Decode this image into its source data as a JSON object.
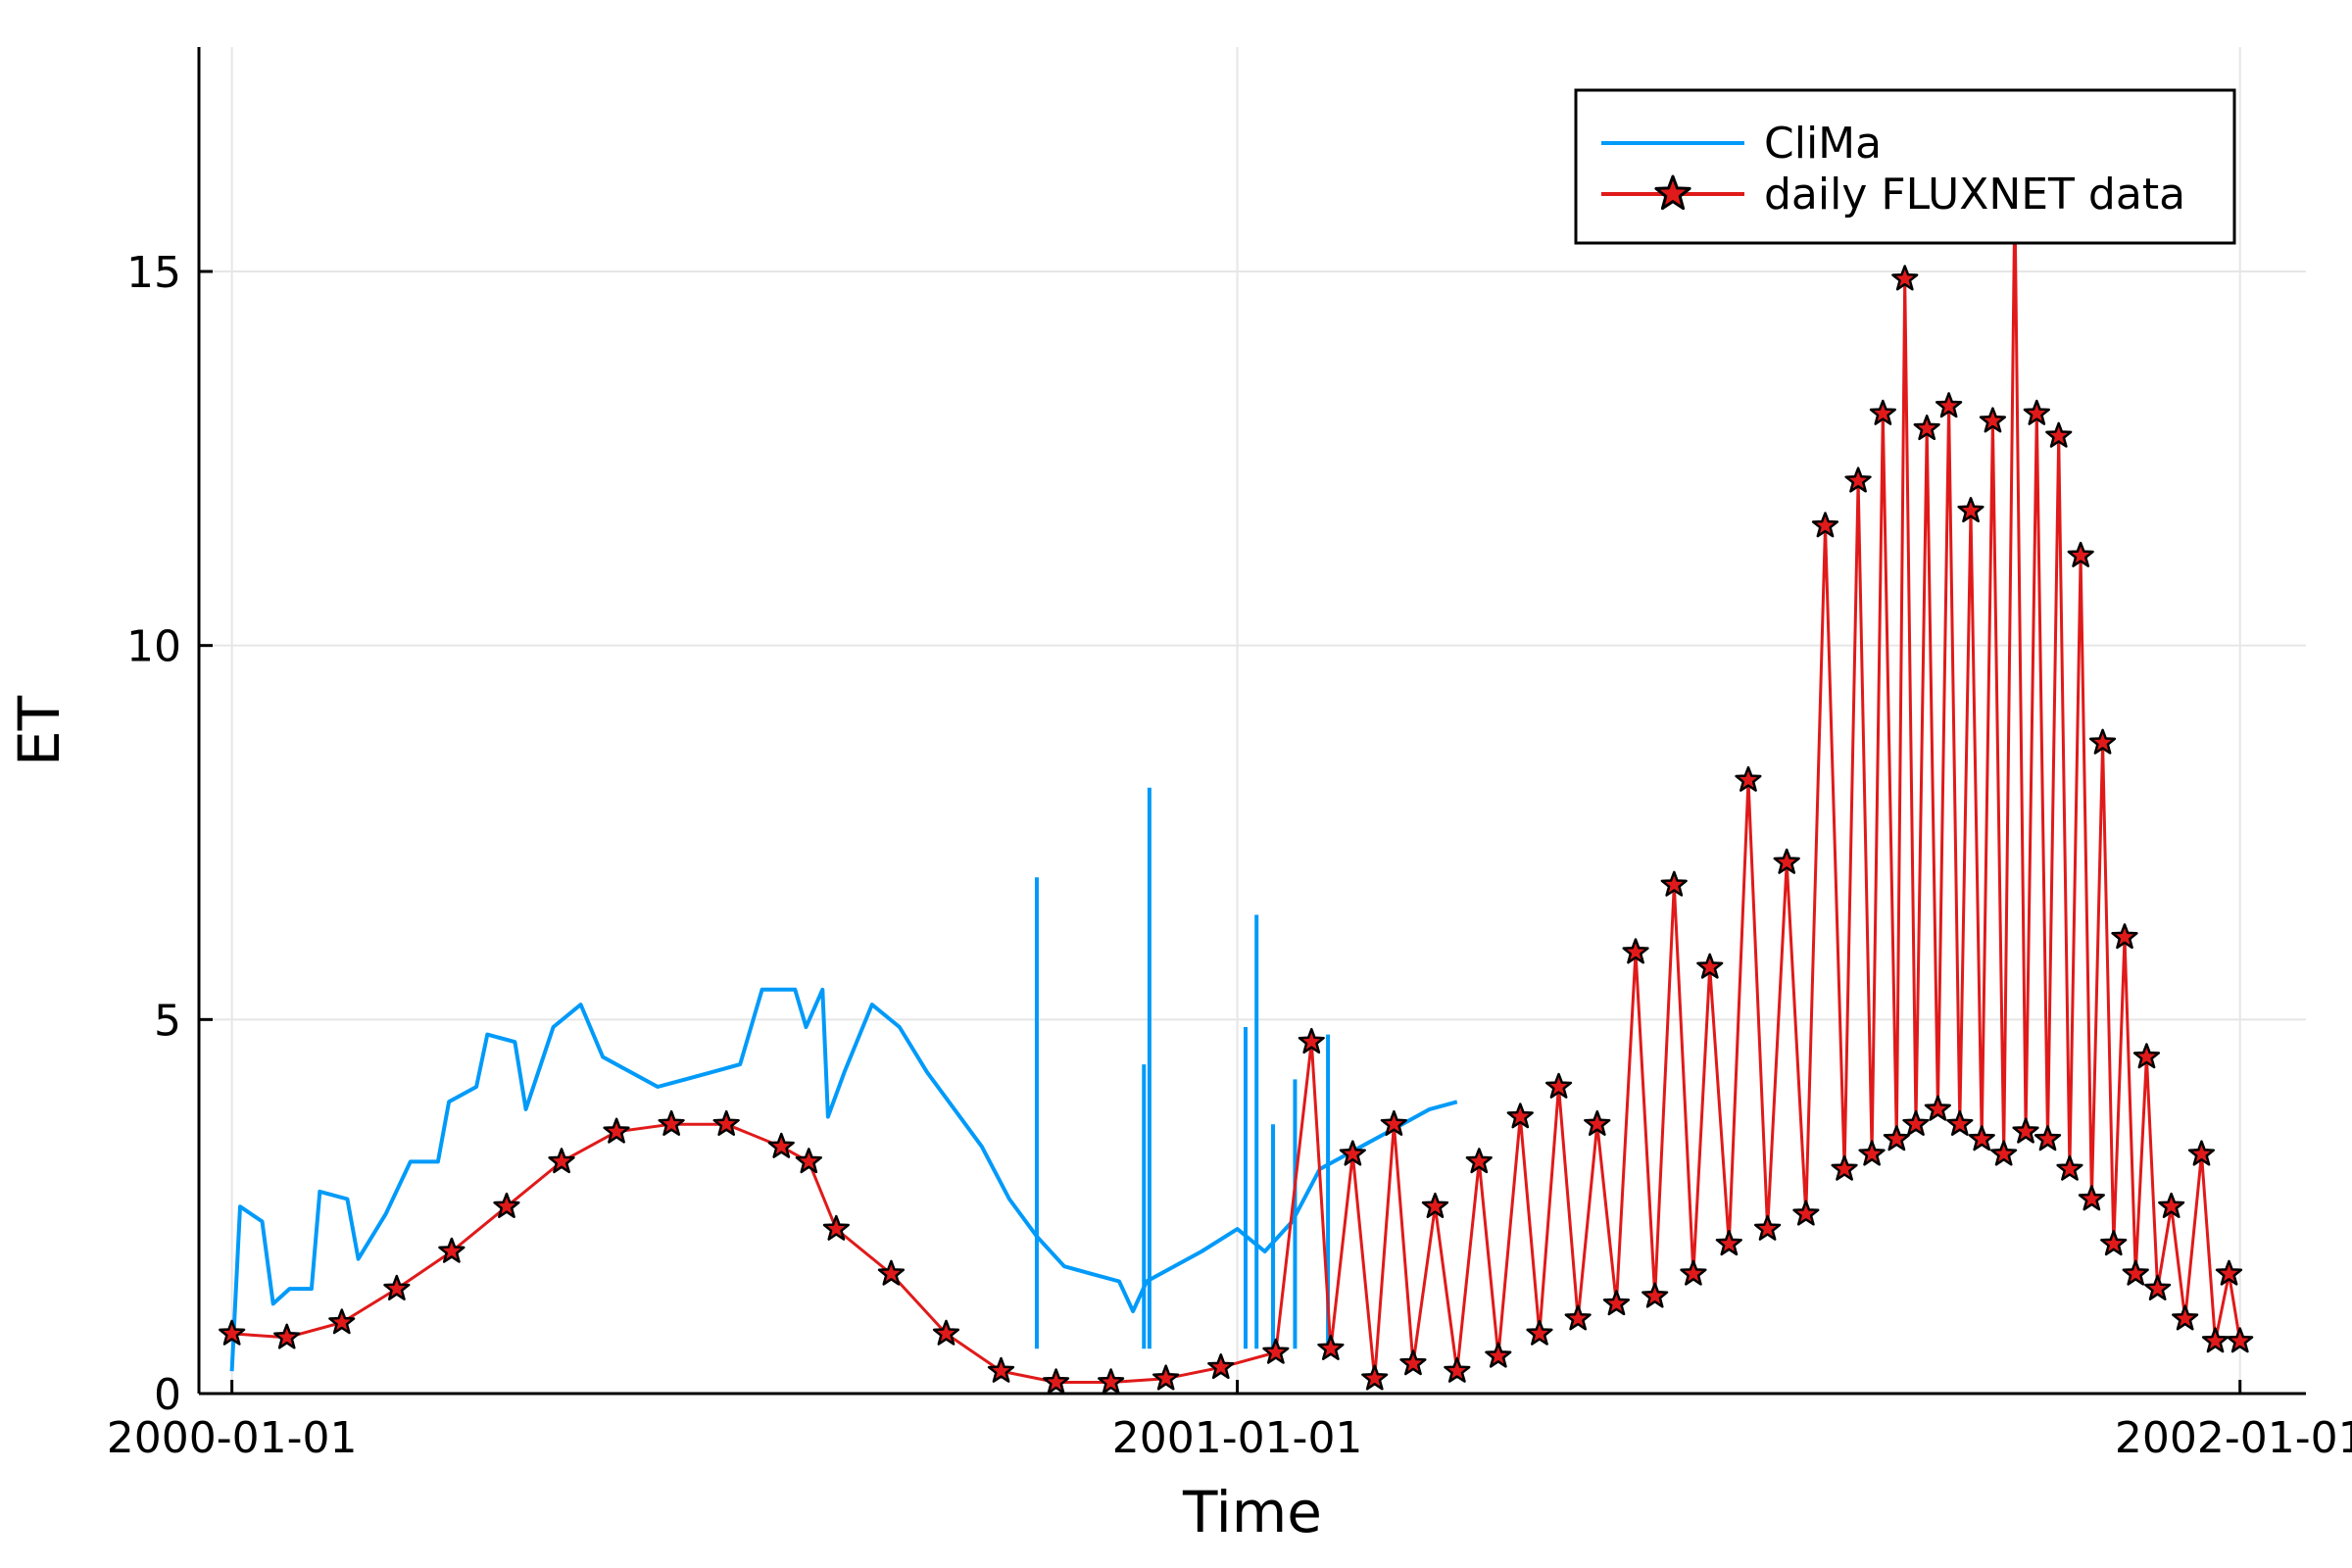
{
  "chart_data": {
    "type": "line",
    "title": "",
    "xlabel": "Time",
    "ylabel": "ET",
    "x_ticks": [
      "2000-01-01",
      "2001-01-01",
      "2002-01-01"
    ],
    "x_tick_dates": [
      "2000-01-01",
      "2001-01-01",
      "2002-01-01"
    ],
    "y_ticks": [
      0,
      5,
      10,
      15
    ],
    "xlim": [
      "1999-12-20",
      "2002-01-25"
    ],
    "ylim": [
      0,
      18
    ],
    "grid": true,
    "legend_position": "top-right",
    "series": [
      {
        "name": "CliMa",
        "color": "#009af9",
        "marker": "none",
        "points": [
          [
            "2000-01-01",
            0.3
          ],
          [
            "2000-01-04",
            2.5
          ],
          [
            "2000-01-12",
            2.3
          ],
          [
            "2000-01-16",
            1.2
          ],
          [
            "2000-01-22",
            1.4
          ],
          [
            "2000-01-30",
            1.4
          ],
          [
            "2000-02-02",
            2.7
          ],
          [
            "2000-02-12",
            2.6
          ],
          [
            "2000-02-16",
            1.8
          ],
          [
            "2000-02-26",
            2.4
          ],
          [
            "2000-03-06",
            3.1
          ],
          [
            "2000-03-16",
            3.1
          ],
          [
            "2000-03-20",
            3.9
          ],
          [
            "2000-03-30",
            4.1
          ],
          [
            "2000-04-03",
            4.8
          ],
          [
            "2000-04-13",
            4.7
          ],
          [
            "2000-04-17",
            3.8
          ],
          [
            "2000-04-27",
            4.9
          ],
          [
            "2000-05-07",
            5.2
          ],
          [
            "2000-05-15",
            4.5
          ],
          [
            "2000-05-25",
            4.3
          ],
          [
            "2000-06-04",
            4.1
          ],
          [
            "2000-06-14",
            4.2
          ],
          [
            "2000-06-24",
            4.3
          ],
          [
            "2000-07-04",
            4.4
          ],
          [
            "2000-07-12",
            5.4
          ],
          [
            "2000-07-24",
            5.4
          ],
          [
            "2000-07-28",
            4.9
          ],
          [
            "2000-08-03",
            5.4
          ],
          [
            "2000-08-05",
            3.7
          ],
          [
            "2000-08-11",
            4.3
          ],
          [
            "2000-08-21",
            5.2
          ],
          [
            "2000-08-31",
            4.9
          ],
          [
            "2000-09-10",
            4.3
          ],
          [
            "2000-09-20",
            3.8
          ],
          [
            "2000-09-30",
            3.3
          ],
          [
            "2000-10-10",
            2.6
          ],
          [
            "2000-10-20",
            2.1
          ],
          [
            "2000-10-30",
            1.7
          ],
          [
            "2000-11-09",
            1.6
          ],
          [
            "2000-11-19",
            1.5
          ],
          [
            "2000-11-24",
            1.1
          ],
          [
            "2000-11-29",
            1.5
          ],
          [
            "2000-12-09",
            1.7
          ],
          [
            "2000-12-19",
            1.9
          ],
          [
            "2001-01-01",
            2.2
          ],
          [
            "2001-01-11",
            1.9
          ],
          [
            "2001-01-21",
            2.3
          ],
          [
            "2001-01-31",
            3.0
          ],
          [
            "2001-02-10",
            3.2
          ],
          [
            "2001-02-20",
            3.4
          ],
          [
            "2001-03-02",
            3.6
          ],
          [
            "2001-03-12",
            3.8
          ],
          [
            "2001-03-22",
            3.9
          ]
        ],
        "spikes": [
          [
            "2000-10-20",
            6.9
          ],
          [
            "2000-11-28",
            4.4
          ],
          [
            "2000-11-30",
            8.1
          ],
          [
            "2001-01-04",
            4.9
          ],
          [
            "2001-01-08",
            6.4
          ],
          [
            "2001-01-14",
            3.6
          ],
          [
            "2001-01-22",
            4.2
          ],
          [
            "2001-02-03",
            4.8
          ]
        ]
      },
      {
        "name": "daily FLUXNET data",
        "color": "#e01a1a",
        "marker": "star",
        "points": [
          [
            "2000-01-01",
            0.8
          ],
          [
            "2000-01-21",
            0.75
          ],
          [
            "2000-02-10",
            0.95
          ],
          [
            "2000-03-01",
            1.4
          ],
          [
            "2000-03-21",
            1.9
          ],
          [
            "2000-04-10",
            2.5
          ],
          [
            "2000-04-30",
            3.1
          ],
          [
            "2000-05-20",
            3.5
          ],
          [
            "2000-06-09",
            3.6
          ],
          [
            "2000-06-29",
            3.6
          ],
          [
            "2000-07-19",
            3.3
          ],
          [
            "2000-07-29",
            3.1
          ],
          [
            "2000-08-08",
            2.2
          ],
          [
            "2000-08-28",
            1.6
          ],
          [
            "2000-09-17",
            0.8
          ],
          [
            "2000-10-07",
            0.3
          ],
          [
            "2000-10-27",
            0.15
          ],
          [
            "2000-11-16",
            0.15
          ],
          [
            "2000-12-06",
            0.2
          ],
          [
            "2000-12-26",
            0.35
          ],
          [
            "2001-01-15",
            0.55
          ],
          [
            "2001-01-28",
            4.7
          ],
          [
            "2001-02-04",
            0.6
          ],
          [
            "2001-02-12",
            3.2
          ],
          [
            "2001-02-20",
            0.2
          ],
          [
            "2001-02-27",
            3.6
          ],
          [
            "2001-03-06",
            0.4
          ],
          [
            "2001-03-14",
            2.5
          ],
          [
            "2001-03-22",
            0.3
          ],
          [
            "2001-03-30",
            3.1
          ],
          [
            "2001-04-06",
            0.5
          ],
          [
            "2001-04-14",
            3.7
          ],
          [
            "2001-04-21",
            0.8
          ],
          [
            "2001-04-28",
            4.1
          ],
          [
            "2001-05-05",
            1.0
          ],
          [
            "2001-05-12",
            3.6
          ],
          [
            "2001-05-19",
            1.2
          ],
          [
            "2001-05-26",
            5.9
          ],
          [
            "2001-06-02",
            1.3
          ],
          [
            "2001-06-09",
            6.8
          ],
          [
            "2001-06-16",
            1.6
          ],
          [
            "2001-06-22",
            5.7
          ],
          [
            "2001-06-29",
            2.0
          ],
          [
            "2001-07-06",
            8.2
          ],
          [
            "2001-07-13",
            2.2
          ],
          [
            "2001-07-20",
            7.1
          ],
          [
            "2001-07-27",
            2.4
          ],
          [
            "2001-08-03",
            11.6
          ],
          [
            "2001-08-10",
            3.0
          ],
          [
            "2001-08-15",
            12.2
          ],
          [
            "2001-08-20",
            3.2
          ],
          [
            "2001-08-24",
            13.1
          ],
          [
            "2001-08-29",
            3.4
          ],
          [
            "2001-09-01",
            14.9
          ],
          [
            "2001-09-05",
            3.6
          ],
          [
            "2001-09-09",
            12.9
          ],
          [
            "2001-09-13",
            3.8
          ],
          [
            "2001-09-17",
            13.2
          ],
          [
            "2001-09-21",
            3.6
          ],
          [
            "2001-09-25",
            11.8
          ],
          [
            "2001-09-29",
            3.4
          ],
          [
            "2001-10-03",
            13.0
          ],
          [
            "2001-10-07",
            3.2
          ],
          [
            "2001-10-11",
            16.0
          ],
          [
            "2001-10-15",
            3.5
          ],
          [
            "2001-10-19",
            13.1
          ],
          [
            "2001-10-23",
            3.4
          ],
          [
            "2001-10-27",
            12.8
          ],
          [
            "2001-10-31",
            3.0
          ],
          [
            "2001-11-04",
            11.2
          ],
          [
            "2001-11-08",
            2.6
          ],
          [
            "2001-11-12",
            8.7
          ],
          [
            "2001-11-16",
            2.0
          ],
          [
            "2001-11-20",
            6.1
          ],
          [
            "2001-11-24",
            1.6
          ],
          [
            "2001-11-28",
            4.5
          ],
          [
            "2001-12-02",
            1.4
          ],
          [
            "2001-12-07",
            2.5
          ],
          [
            "2001-12-12",
            1.0
          ],
          [
            "2001-12-18",
            3.2
          ],
          [
            "2001-12-23",
            0.7
          ],
          [
            "2001-12-28",
            1.6
          ],
          [
            "2002-01-01",
            0.7
          ]
        ]
      }
    ]
  }
}
